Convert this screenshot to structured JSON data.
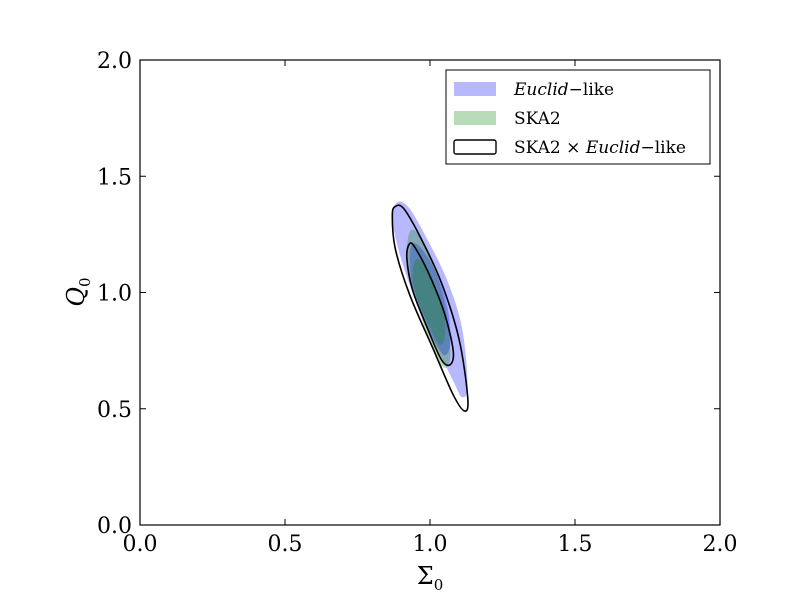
{
  "chart_data": {
    "type": "contour",
    "title": "",
    "xlabel_base": "Σ",
    "xlabel_sub": "0",
    "ylabel_base": "Q",
    "ylabel_sub": "0",
    "xlim": [
      0.0,
      2.0
    ],
    "ylim": [
      0.0,
      2.0
    ],
    "xticks": [
      "0.0",
      "0.5",
      "1.0",
      "1.5",
      "2.0"
    ],
    "yticks": [
      "0.0",
      "0.5",
      "1.0",
      "1.5",
      "2.0"
    ],
    "grid": false,
    "legend_position": "top-right",
    "series": [
      {
        "name_parts": [
          {
            "text": "Euclid",
            "italic": true
          },
          {
            "text": "−like",
            "italic": false
          }
        ],
        "style": "filled",
        "color": "#0000ff",
        "alpha": 0.28,
        "center": [
          1.0,
          0.96
        ],
        "contours": [
          {
            "level": "2σ",
            "points": [
              [
                0.89,
                1.39
              ],
              [
                0.93,
                1.36
              ],
              [
                0.99,
                1.23
              ],
              [
                1.06,
                1.05
              ],
              [
                1.11,
                0.85
              ],
              [
                1.13,
                0.6
              ],
              [
                1.11,
                0.55
              ],
              [
                1.08,
                0.62
              ],
              [
                1.01,
                0.8
              ],
              [
                0.94,
                1.0
              ],
              [
                0.89,
                1.19
              ],
              [
                0.87,
                1.33
              ]
            ]
          },
          {
            "level": "1σ",
            "points": [
              [
                0.94,
                1.21
              ],
              [
                0.97,
                1.19
              ],
              [
                1.02,
                1.09
              ],
              [
                1.06,
                0.94
              ],
              [
                1.07,
                0.78
              ],
              [
                1.05,
                0.73
              ],
              [
                1.02,
                0.78
              ],
              [
                0.98,
                0.88
              ],
              [
                0.94,
                1.02
              ],
              [
                0.93,
                1.15
              ]
            ]
          }
        ]
      },
      {
        "name_parts": [
          {
            "text": "SKA2",
            "italic": false
          }
        ],
        "style": "filled",
        "color": "#008000",
        "alpha": 0.28,
        "center": [
          1.0,
          0.96
        ],
        "contours": [
          {
            "level": "2σ",
            "points": [
              [
                0.93,
                1.26
              ],
              [
                0.96,
                1.25
              ],
              [
                1.01,
                1.12
              ],
              [
                1.05,
                0.96
              ],
              [
                1.07,
                0.76
              ],
              [
                1.06,
                0.68
              ],
              [
                1.03,
                0.7
              ],
              [
                0.99,
                0.82
              ],
              [
                0.95,
                0.98
              ],
              [
                0.92,
                1.14
              ]
            ]
          },
          {
            "level": "1σ",
            "points": [
              [
                0.95,
                1.14
              ],
              [
                0.98,
                1.12
              ],
              [
                1.02,
                1.02
              ],
              [
                1.05,
                0.9
              ],
              [
                1.05,
                0.8
              ],
              [
                1.03,
                0.78
              ],
              [
                1.0,
                0.85
              ],
              [
                0.96,
                0.96
              ],
              [
                0.94,
                1.06
              ]
            ]
          }
        ]
      },
      {
        "name_parts": [
          {
            "text": "SKA2 × ",
            "italic": false
          },
          {
            "text": "Euclid",
            "italic": true
          },
          {
            "text": "−like",
            "italic": false
          }
        ],
        "style": "outline",
        "color": "#000000",
        "alpha": 1.0,
        "center": [
          1.0,
          0.94
        ],
        "contours": [
          {
            "level": "2σ",
            "points": [
              [
                0.88,
                1.37
              ],
              [
                0.91,
                1.36
              ],
              [
                0.97,
                1.23
              ],
              [
                1.04,
                1.04
              ],
              [
                1.1,
                0.8
              ],
              [
                1.13,
                0.55
              ],
              [
                1.12,
                0.49
              ],
              [
                1.08,
                0.56
              ],
              [
                1.01,
                0.76
              ],
              [
                0.93,
                0.99
              ],
              [
                0.88,
                1.19
              ],
              [
                0.87,
                1.33
              ]
            ]
          },
          {
            "level": "1σ",
            "points": [
              [
                0.93,
                1.21
              ],
              [
                0.95,
                1.19
              ],
              [
                1.0,
                1.07
              ],
              [
                1.05,
                0.91
              ],
              [
                1.08,
                0.75
              ],
              [
                1.07,
                0.69
              ],
              [
                1.04,
                0.71
              ],
              [
                0.99,
                0.85
              ],
              [
                0.94,
                1.01
              ],
              [
                0.92,
                1.15
              ]
            ]
          }
        ]
      }
    ]
  }
}
